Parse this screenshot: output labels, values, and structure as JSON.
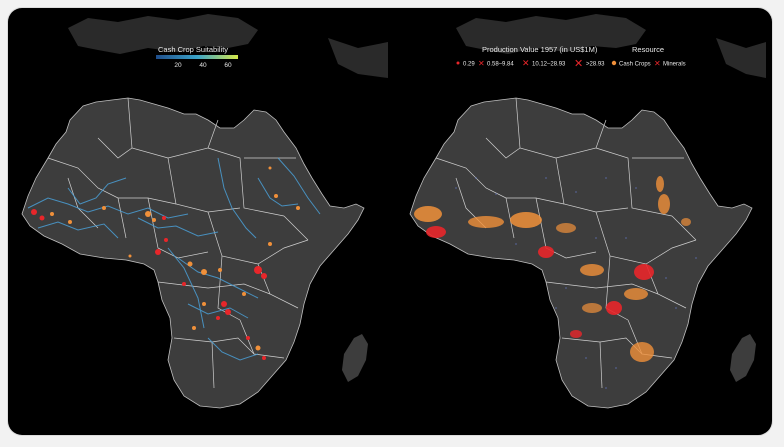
{
  "left_map": {
    "legend_title": "Cash Crop Suitability",
    "ticks": [
      "20",
      "40",
      "60"
    ]
  },
  "right_map": {
    "production_title": "Production Value 1957 (in US$1M)",
    "bins": [
      "0.29",
      "0.58–9.84",
      "10.12–28.93",
      ">28.93"
    ],
    "resource_title": "Resource",
    "resources": [
      "Cash Crops",
      "Minerals"
    ]
  },
  "colors": {
    "background": "#000000",
    "land": "#3d3d3d",
    "borders": "#cfcfcf",
    "cash_crops": "#f0903a",
    "minerals": "#e8262a",
    "suitability_low": "#1f4e8c",
    "suitability_mid": "#3aa3c8",
    "suitability_high": "#d6e84a"
  }
}
